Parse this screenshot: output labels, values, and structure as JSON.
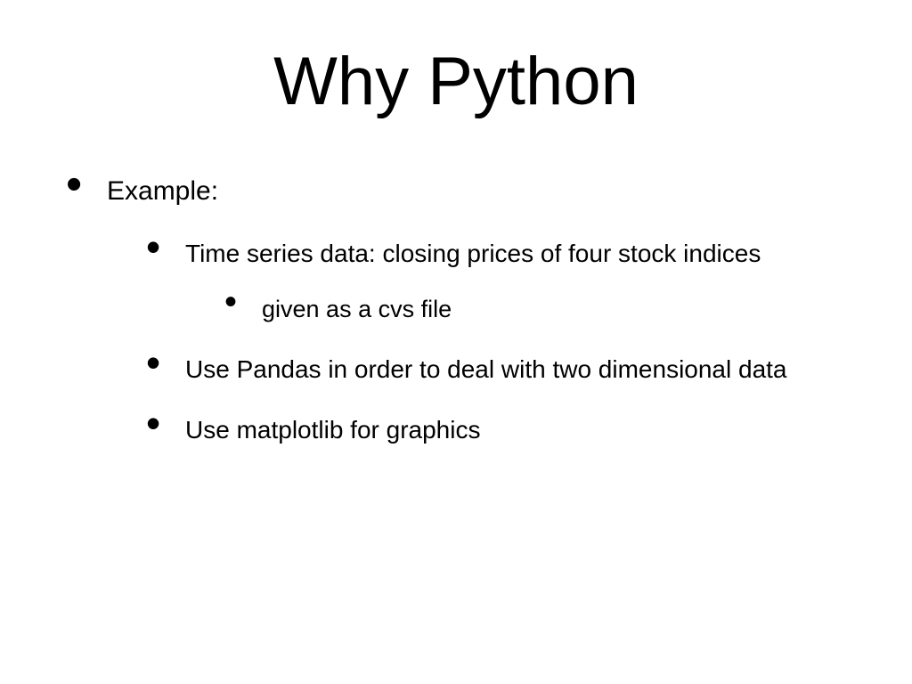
{
  "title": "Why Python",
  "bullets": {
    "l1": {
      "example": "Example:"
    },
    "l2": {
      "timeseries": "Time series data:  closing prices of four stock indices",
      "pandas": "Use Pandas in order to deal with two dimensional data",
      "matplotlib": "Use matplotlib for graphics"
    },
    "l3": {
      "csv": "given as a cvs file"
    }
  },
  "style": {
    "background_color": "#ffffff",
    "text_color": "#000000",
    "title_fontsize": 76,
    "l1_fontsize": 30,
    "l2_fontsize": 28,
    "l3_fontsize": 27,
    "font_family": "Arial"
  }
}
